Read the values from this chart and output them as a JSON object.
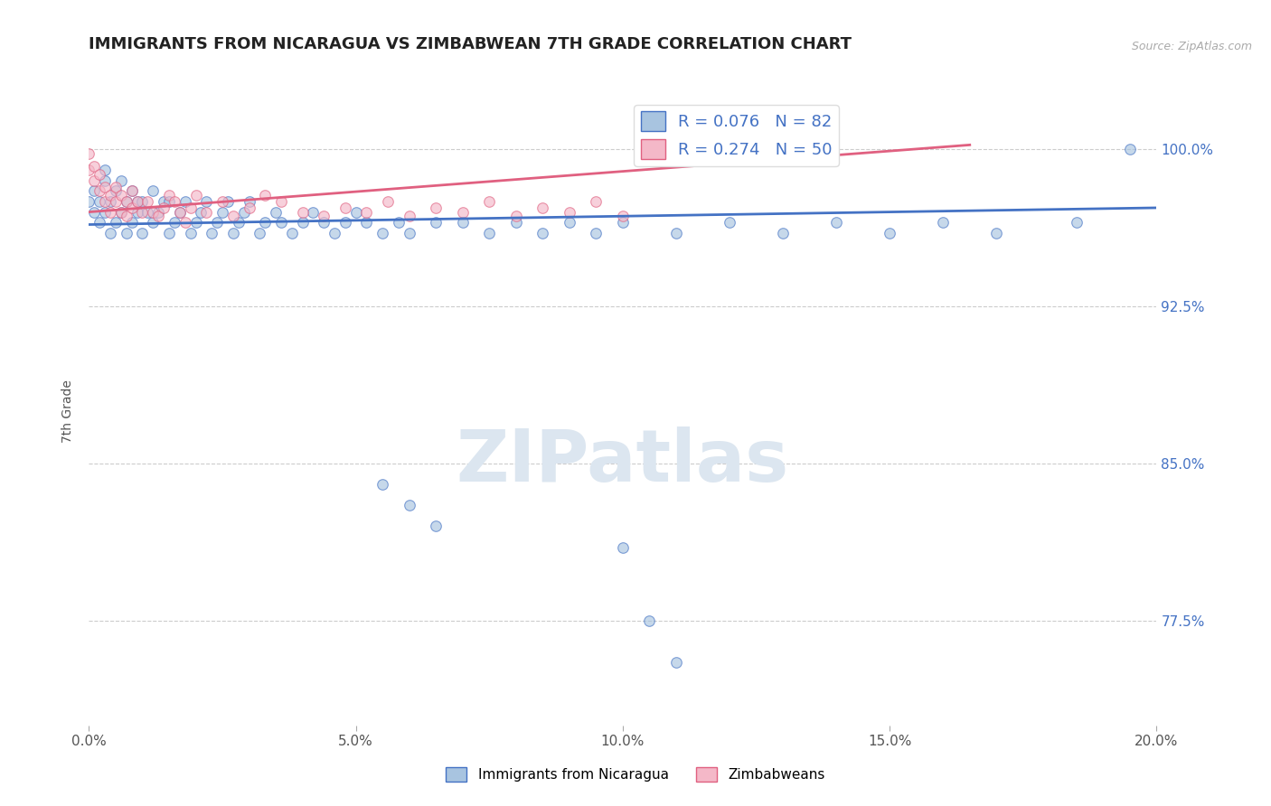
{
  "title": "IMMIGRANTS FROM NICARAGUA VS ZIMBABWEAN 7TH GRADE CORRELATION CHART",
  "source_text": "Source: ZipAtlas.com",
  "ylabel": "7th Grade",
  "xmin": 0.0,
  "xmax": 0.2,
  "ymin": 0.725,
  "ymax": 1.025,
  "yticks": [
    0.775,
    0.85,
    0.925,
    1.0
  ],
  "ytick_labels": [
    "77.5%",
    "85.0%",
    "92.5%",
    "100.0%"
  ],
  "xticks": [
    0.0,
    0.05,
    0.1,
    0.15,
    0.2
  ],
  "xtick_labels": [
    "0.0%",
    "5.0%",
    "10.0%",
    "15.0%",
    "20.0%"
  ],
  "blue_color": "#a8c4e0",
  "blue_line_color": "#4472c4",
  "pink_color": "#f4b8c8",
  "pink_line_color": "#e06080",
  "legend_text_color": "#4472c4",
  "title_color": "#222222",
  "watermark_color": "#dce6f0",
  "legend1_label": "R = 0.076   N = 82",
  "legend2_label": "R = 0.274   N = 50",
  "legend_bottom_label1": "Immigrants from Nicaragua",
  "legend_bottom_label2": "Zimbabweans",
  "blue_scatter_x": [
    0.0,
    0.001,
    0.001,
    0.002,
    0.002,
    0.003,
    0.003,
    0.003,
    0.004,
    0.004,
    0.005,
    0.005,
    0.006,
    0.006,
    0.007,
    0.007,
    0.008,
    0.008,
    0.009,
    0.009,
    0.01,
    0.01,
    0.011,
    0.012,
    0.012,
    0.013,
    0.014,
    0.015,
    0.015,
    0.016,
    0.017,
    0.018,
    0.019,
    0.02,
    0.021,
    0.022,
    0.023,
    0.024,
    0.025,
    0.026,
    0.027,
    0.028,
    0.029,
    0.03,
    0.032,
    0.033,
    0.035,
    0.036,
    0.038,
    0.04,
    0.042,
    0.044,
    0.046,
    0.048,
    0.05,
    0.052,
    0.055,
    0.058,
    0.06,
    0.065,
    0.07,
    0.075,
    0.08,
    0.085,
    0.09,
    0.095,
    0.1,
    0.11,
    0.12,
    0.13,
    0.14,
    0.15,
    0.16,
    0.17,
    0.185,
    0.195,
    0.055,
    0.06,
    0.065,
    0.1,
    0.105,
    0.11
  ],
  "blue_scatter_y": [
    0.975,
    0.97,
    0.98,
    0.965,
    0.975,
    0.97,
    0.985,
    0.99,
    0.975,
    0.96,
    0.965,
    0.98,
    0.97,
    0.985,
    0.96,
    0.975,
    0.965,
    0.98,
    0.97,
    0.975,
    0.96,
    0.975,
    0.97,
    0.965,
    0.98,
    0.97,
    0.975,
    0.96,
    0.975,
    0.965,
    0.97,
    0.975,
    0.96,
    0.965,
    0.97,
    0.975,
    0.96,
    0.965,
    0.97,
    0.975,
    0.96,
    0.965,
    0.97,
    0.975,
    0.96,
    0.965,
    0.97,
    0.965,
    0.96,
    0.965,
    0.97,
    0.965,
    0.96,
    0.965,
    0.97,
    0.965,
    0.96,
    0.965,
    0.96,
    0.965,
    0.965,
    0.96,
    0.965,
    0.96,
    0.965,
    0.96,
    0.965,
    0.96,
    0.965,
    0.96,
    0.965,
    0.96,
    0.965,
    0.96,
    0.965,
    1.0,
    0.84,
    0.83,
    0.82,
    0.81,
    0.775,
    0.755
  ],
  "pink_scatter_x": [
    0.0,
    0.0,
    0.001,
    0.001,
    0.002,
    0.002,
    0.003,
    0.003,
    0.004,
    0.004,
    0.005,
    0.005,
    0.006,
    0.006,
    0.007,
    0.007,
    0.008,
    0.008,
    0.009,
    0.01,
    0.011,
    0.012,
    0.013,
    0.014,
    0.015,
    0.016,
    0.017,
    0.018,
    0.019,
    0.02,
    0.022,
    0.025,
    0.027,
    0.03,
    0.033,
    0.036,
    0.04,
    0.044,
    0.048,
    0.052,
    0.056,
    0.06,
    0.065,
    0.07,
    0.075,
    0.08,
    0.085,
    0.09,
    0.095,
    0.1
  ],
  "pink_scatter_y": [
    0.99,
    0.998,
    0.985,
    0.992,
    0.98,
    0.988,
    0.975,
    0.982,
    0.97,
    0.978,
    0.975,
    0.982,
    0.97,
    0.978,
    0.975,
    0.968,
    0.972,
    0.98,
    0.975,
    0.97,
    0.975,
    0.97,
    0.968,
    0.972,
    0.978,
    0.975,
    0.97,
    0.965,
    0.972,
    0.978,
    0.97,
    0.975,
    0.968,
    0.972,
    0.978,
    0.975,
    0.97,
    0.968,
    0.972,
    0.97,
    0.975,
    0.968,
    0.972,
    0.97,
    0.975,
    0.968,
    0.972,
    0.97,
    0.975,
    0.968
  ],
  "blue_trend_x": [
    0.0,
    0.2
  ],
  "blue_trend_y": [
    0.964,
    0.972
  ],
  "pink_trend_x": [
    0.0,
    0.165
  ],
  "pink_trend_y": [
    0.97,
    1.002
  ],
  "dot_size": 70,
  "dot_alpha": 0.65,
  "grid_color": "#cccccc",
  "background_color": "#ffffff"
}
